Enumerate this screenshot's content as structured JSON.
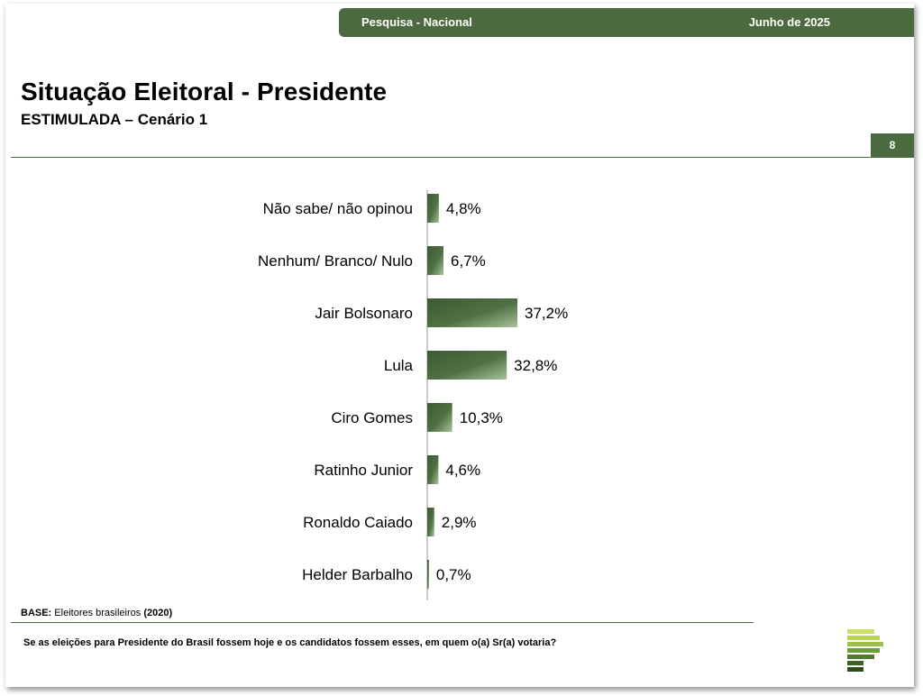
{
  "header": {
    "left_label": "Pesquisa - Nacional",
    "right_label": "Junho de 2025",
    "page_number": "8"
  },
  "title": "Situação Eleitoral - Presidente",
  "subtitle": "ESTIMULADA – Cenário 1",
  "footer": {
    "base_label": "BASE:",
    "base_text": "Eleitores brasileiros",
    "base_count": "(2020)",
    "question": "Se as eleições para Presidente do Brasil fossem hoje e os candidatos fossem esses, em quem o(a) Sr(a) votaria?"
  },
  "colors": {
    "accent": "#4b6a3f",
    "bar_dark": "#3e5a33",
    "bar_light": "#a9c29a"
  },
  "chart_data": {
    "type": "bar",
    "orientation": "horizontal",
    "categories": [
      "Não sabe/ não opinou",
      "Nenhum/ Branco/ Nulo",
      "Jair Bolsonaro",
      "Lula",
      "Ciro Gomes",
      "Ratinho Junior",
      "Ronaldo Caiado",
      "Helder Barbalho"
    ],
    "values": [
      4.8,
      6.7,
      37.2,
      32.8,
      10.3,
      4.6,
      2.9,
      0.7
    ],
    "value_labels": [
      "4,8%",
      "6,7%",
      "37,2%",
      "32,8%",
      "10,3%",
      "4,6%",
      "2,9%",
      "0,7%"
    ],
    "xlim": [
      0,
      100
    ],
    "grid": false,
    "legend": "none"
  }
}
